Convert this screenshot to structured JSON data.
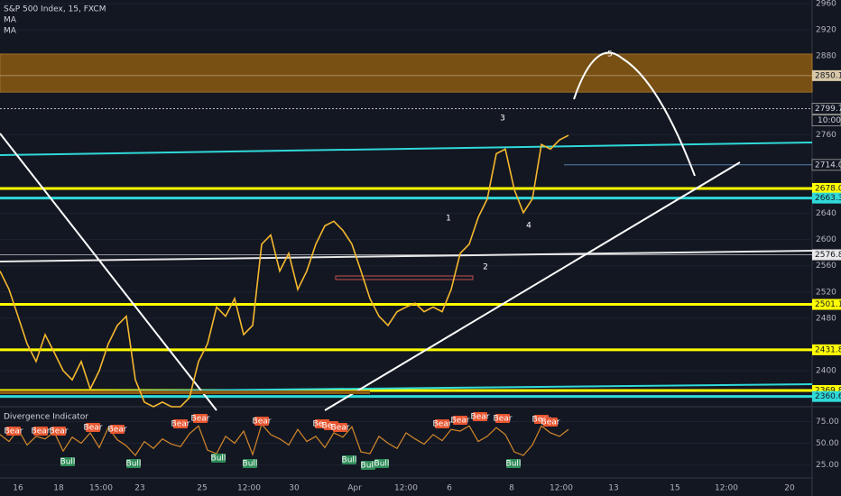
{
  "chart_data": {
    "type": "line",
    "title": "S&P 500 Index, 15, FXCM",
    "legend": [
      "MA",
      "MA"
    ],
    "color": "#f5b82e",
    "values": [
      2552,
      2524,
      2483,
      2441,
      2414,
      2455,
      2428,
      2400,
      2386,
      2414,
      2372,
      2400,
      2441,
      2469,
      2483,
      2386,
      2352,
      2345,
      2352,
      2345,
      2345,
      2359,
      2414,
      2441,
      2497,
      2483,
      2510,
      2455,
      2469,
      2593,
      2607,
      2552,
      2579,
      2524,
      2552,
      2593,
      2621,
      2628,
      2614,
      2593,
      2552,
      2510,
      2483,
      2469,
      2490,
      2497,
      2503,
      2490,
      2497,
      2490,
      2524,
      2579,
      2593,
      2634,
      2662,
      2731,
      2738,
      2676,
      2641,
      2662,
      2745,
      2738,
      2752,
      2759
    ],
    "ylim": [
      2345,
      2965.5
    ],
    "yticks": [
      2960,
      2920,
      2880,
      2760,
      2640,
      2600,
      2560,
      2520,
      2480,
      2400
    ],
    "zone": {
      "low": 2825,
      "high": 2883,
      "color": "#8a5a12"
    },
    "levels": [
      {
        "value": 2850.1,
        "color": "#d9c9a8"
      },
      {
        "value": 2799.7,
        "color": "#bfbfbf"
      },
      {
        "value": 2714,
        "label": "2714.0",
        "color": "#5b7fa8"
      },
      {
        "value": 2678,
        "label": "2678.0",
        "color": "#ffff00"
      },
      {
        "value": 2663.3,
        "color": "#2fd9d9"
      },
      {
        "value": 2576.8,
        "color": "#e8e8e8"
      },
      {
        "value": 2501.1,
        "color": "#ffff00"
      },
      {
        "value": 2431.8,
        "color": "#ffff00"
      },
      {
        "value": 2369.8,
        "color": "#ffff00"
      },
      {
        "value": 2360.6,
        "color": "#2fd9d9"
      }
    ],
    "countdown": "10:00",
    "waves": [
      "1",
      "2",
      "3",
      "4",
      "5"
    ],
    "x_labels": [
      "16",
      "18",
      "15:00",
      "23",
      "25",
      "12:00",
      "30",
      "Apr",
      "12:00",
      "6",
      "8",
      "12:00",
      "13",
      "15",
      "12:00",
      "20"
    ],
    "indicator": {
      "title": "Divergence Indicator",
      "color": "#d4882a",
      "values": [
        60,
        52,
        66,
        48,
        58,
        55,
        63,
        41,
        57,
        50,
        62,
        45,
        68,
        54,
        47,
        36,
        52,
        44,
        55,
        49,
        46,
        61,
        70,
        42,
        38,
        58,
        50,
        64,
        37,
        72,
        60,
        55,
        48,
        66,
        52,
        58,
        45,
        62,
        57,
        69,
        40,
        38,
        58,
        50,
        44,
        62,
        55,
        49,
        60,
        53,
        66,
        64,
        70,
        52,
        58,
        68,
        60,
        40,
        36,
        48,
        70,
        62,
        58,
        66
      ],
      "ylim": [
        10,
        90
      ],
      "yticks": [
        {
          "value": 75,
          "label": "75.00"
        },
        {
          "value": 50,
          "label": "50.00"
        },
        {
          "value": 25,
          "label": "25.00"
        }
      ],
      "signals": [
        "Bear",
        "Bear",
        "Bear",
        "Bear",
        "Bear",
        "Bear",
        "Bear",
        "Bear",
        "Bear",
        "Bear",
        "Bear",
        "Bear",
        "Bear",
        "Bear",
        "Bear",
        "Bear",
        "Bear",
        "Bull",
        "Bull",
        "Bull",
        "Bull",
        "Bull",
        "Bull",
        "Bull",
        "Bull"
      ]
    }
  }
}
